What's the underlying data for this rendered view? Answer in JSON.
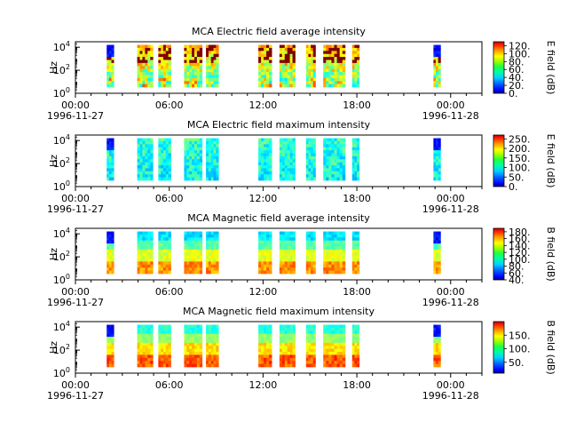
{
  "figure": {
    "panels": [
      {
        "title": "MCA  Electric field average intensity",
        "cbar_label": "E field (dB)"
      },
      {
        "title": "MCA  Electric field maximum intensity",
        "cbar_label": "E field (dB)"
      },
      {
        "title": "MCA  Magnetic field average intensity",
        "cbar_label": "B field (dB)"
      },
      {
        "title": "MCA  Magnetic field maximum intensity",
        "cbar_label": "B field (dB)"
      }
    ]
  },
  "chart_data": [
    {
      "type": "heatmap",
      "title": "MCA  Electric field average intensity",
      "ylabel": "Hz",
      "yscale": "log",
      "ylim": [
        1,
        30000
      ],
      "y_ticks": [
        {
          "base": "10",
          "exp": "0"
        },
        {
          "base": "10",
          "exp": "2"
        },
        {
          "base": "10",
          "exp": "4"
        }
      ],
      "xlim_hours": [
        0,
        26
      ],
      "x_ticks": [
        {
          "time": "00:00",
          "date": "1996-11-27"
        },
        {
          "time": "06:00",
          "date": ""
        },
        {
          "time": "12:00",
          "date": ""
        },
        {
          "time": "18:00",
          "date": ""
        },
        {
          "time": "00:00",
          "date": "1996-11-28"
        }
      ],
      "colorbar": {
        "label": "E field (dB)",
        "range": [
          0,
          130
        ],
        "ticks": [
          "0.",
          "20.",
          "40.",
          "60.",
          "80.",
          "100.",
          "120."
        ]
      },
      "data_intervals_hours": [
        [
          2.0,
          2.45
        ],
        [
          3.95,
          4.95
        ],
        [
          5.3,
          6.1
        ],
        [
          6.95,
          8.1
        ],
        [
          8.35,
          9.15
        ],
        [
          11.7,
          12.55
        ],
        [
          13.05,
          14.05
        ],
        [
          14.75,
          15.35
        ],
        [
          15.85,
          17.25
        ],
        [
          17.7,
          18.15
        ],
        [
          22.9,
          23.35
        ]
      ],
      "note_values": "spectral intensity per time/frequency bin"
    },
    {
      "type": "heatmap",
      "title": "MCA  Electric field maximum intensity",
      "ylabel": "Hz",
      "yscale": "log",
      "ylim": [
        1,
        30000
      ],
      "y_ticks": [
        {
          "base": "10",
          "exp": "0"
        },
        {
          "base": "10",
          "exp": "2"
        },
        {
          "base": "10",
          "exp": "4"
        }
      ],
      "xlim_hours": [
        0,
        26
      ],
      "x_ticks": [
        {
          "time": "00:00",
          "date": "1996-11-27"
        },
        {
          "time": "06:00",
          "date": ""
        },
        {
          "time": "12:00",
          "date": ""
        },
        {
          "time": "18:00",
          "date": ""
        },
        {
          "time": "00:00",
          "date": "1996-11-28"
        }
      ],
      "colorbar": {
        "label": "E field (dB)",
        "range": [
          0,
          270
        ],
        "ticks": [
          "0.",
          "50.",
          "100.",
          "150.",
          "200.",
          "250."
        ]
      },
      "data_intervals_hours": [
        [
          2.0,
          2.45
        ],
        [
          3.95,
          4.95
        ],
        [
          5.3,
          6.1
        ],
        [
          6.95,
          8.1
        ],
        [
          8.35,
          9.15
        ],
        [
          11.7,
          12.55
        ],
        [
          13.05,
          14.05
        ],
        [
          14.75,
          15.35
        ],
        [
          15.85,
          17.25
        ],
        [
          17.7,
          18.15
        ],
        [
          22.9,
          23.35
        ]
      ]
    },
    {
      "type": "heatmap",
      "title": "MCA  Magnetic field average intensity",
      "ylabel": "Hz",
      "yscale": "log",
      "ylim": [
        1,
        30000
      ],
      "y_ticks": [
        {
          "base": "10",
          "exp": "0"
        },
        {
          "base": "10",
          "exp": "2"
        },
        {
          "base": "10",
          "exp": "4"
        }
      ],
      "xlim_hours": [
        0,
        26
      ],
      "x_ticks": [
        {
          "time": "00:00",
          "date": "1996-11-27"
        },
        {
          "time": "06:00",
          "date": ""
        },
        {
          "time": "12:00",
          "date": ""
        },
        {
          "time": "18:00",
          "date": ""
        },
        {
          "time": "00:00",
          "date": "1996-11-28"
        }
      ],
      "colorbar": {
        "label": "B field (dB)",
        "range": [
          40,
          190
        ],
        "ticks": [
          "40.",
          "60.",
          "80.",
          "100.",
          "120.",
          "140.",
          "160.",
          "180."
        ]
      },
      "data_intervals_hours": [
        [
          2.0,
          2.45
        ],
        [
          3.95,
          4.95
        ],
        [
          5.3,
          6.1
        ],
        [
          6.95,
          8.1
        ],
        [
          8.35,
          9.15
        ],
        [
          11.7,
          12.55
        ],
        [
          13.05,
          14.05
        ],
        [
          14.75,
          15.35
        ],
        [
          15.85,
          17.25
        ],
        [
          17.7,
          18.15
        ],
        [
          22.9,
          23.35
        ]
      ]
    },
    {
      "type": "heatmap",
      "title": "MCA  Magnetic field maximum intensity",
      "ylabel": "Hz",
      "yscale": "log",
      "ylim": [
        1,
        30000
      ],
      "y_ticks": [
        {
          "base": "10",
          "exp": "0"
        },
        {
          "base": "10",
          "exp": "2"
        },
        {
          "base": "10",
          "exp": "4"
        }
      ],
      "xlim_hours": [
        0,
        26
      ],
      "x_ticks": [
        {
          "time": "00:00",
          "date": "1996-11-27"
        },
        {
          "time": "06:00",
          "date": ""
        },
        {
          "time": "12:00",
          "date": ""
        },
        {
          "time": "18:00",
          "date": ""
        },
        {
          "time": "00:00",
          "date": "1996-11-28"
        }
      ],
      "colorbar": {
        "label": "B field (dB)",
        "range": [
          10,
          200
        ],
        "ticks": [
          "50.",
          "100.",
          "150."
        ]
      },
      "data_intervals_hours": [
        [
          2.0,
          2.45
        ],
        [
          3.95,
          4.95
        ],
        [
          5.3,
          6.1
        ],
        [
          6.95,
          8.1
        ],
        [
          8.35,
          9.15
        ],
        [
          11.7,
          12.55
        ],
        [
          13.05,
          14.05
        ],
        [
          14.75,
          15.35
        ],
        [
          15.85,
          17.25
        ],
        [
          17.7,
          18.15
        ],
        [
          22.9,
          23.35
        ]
      ]
    }
  ]
}
